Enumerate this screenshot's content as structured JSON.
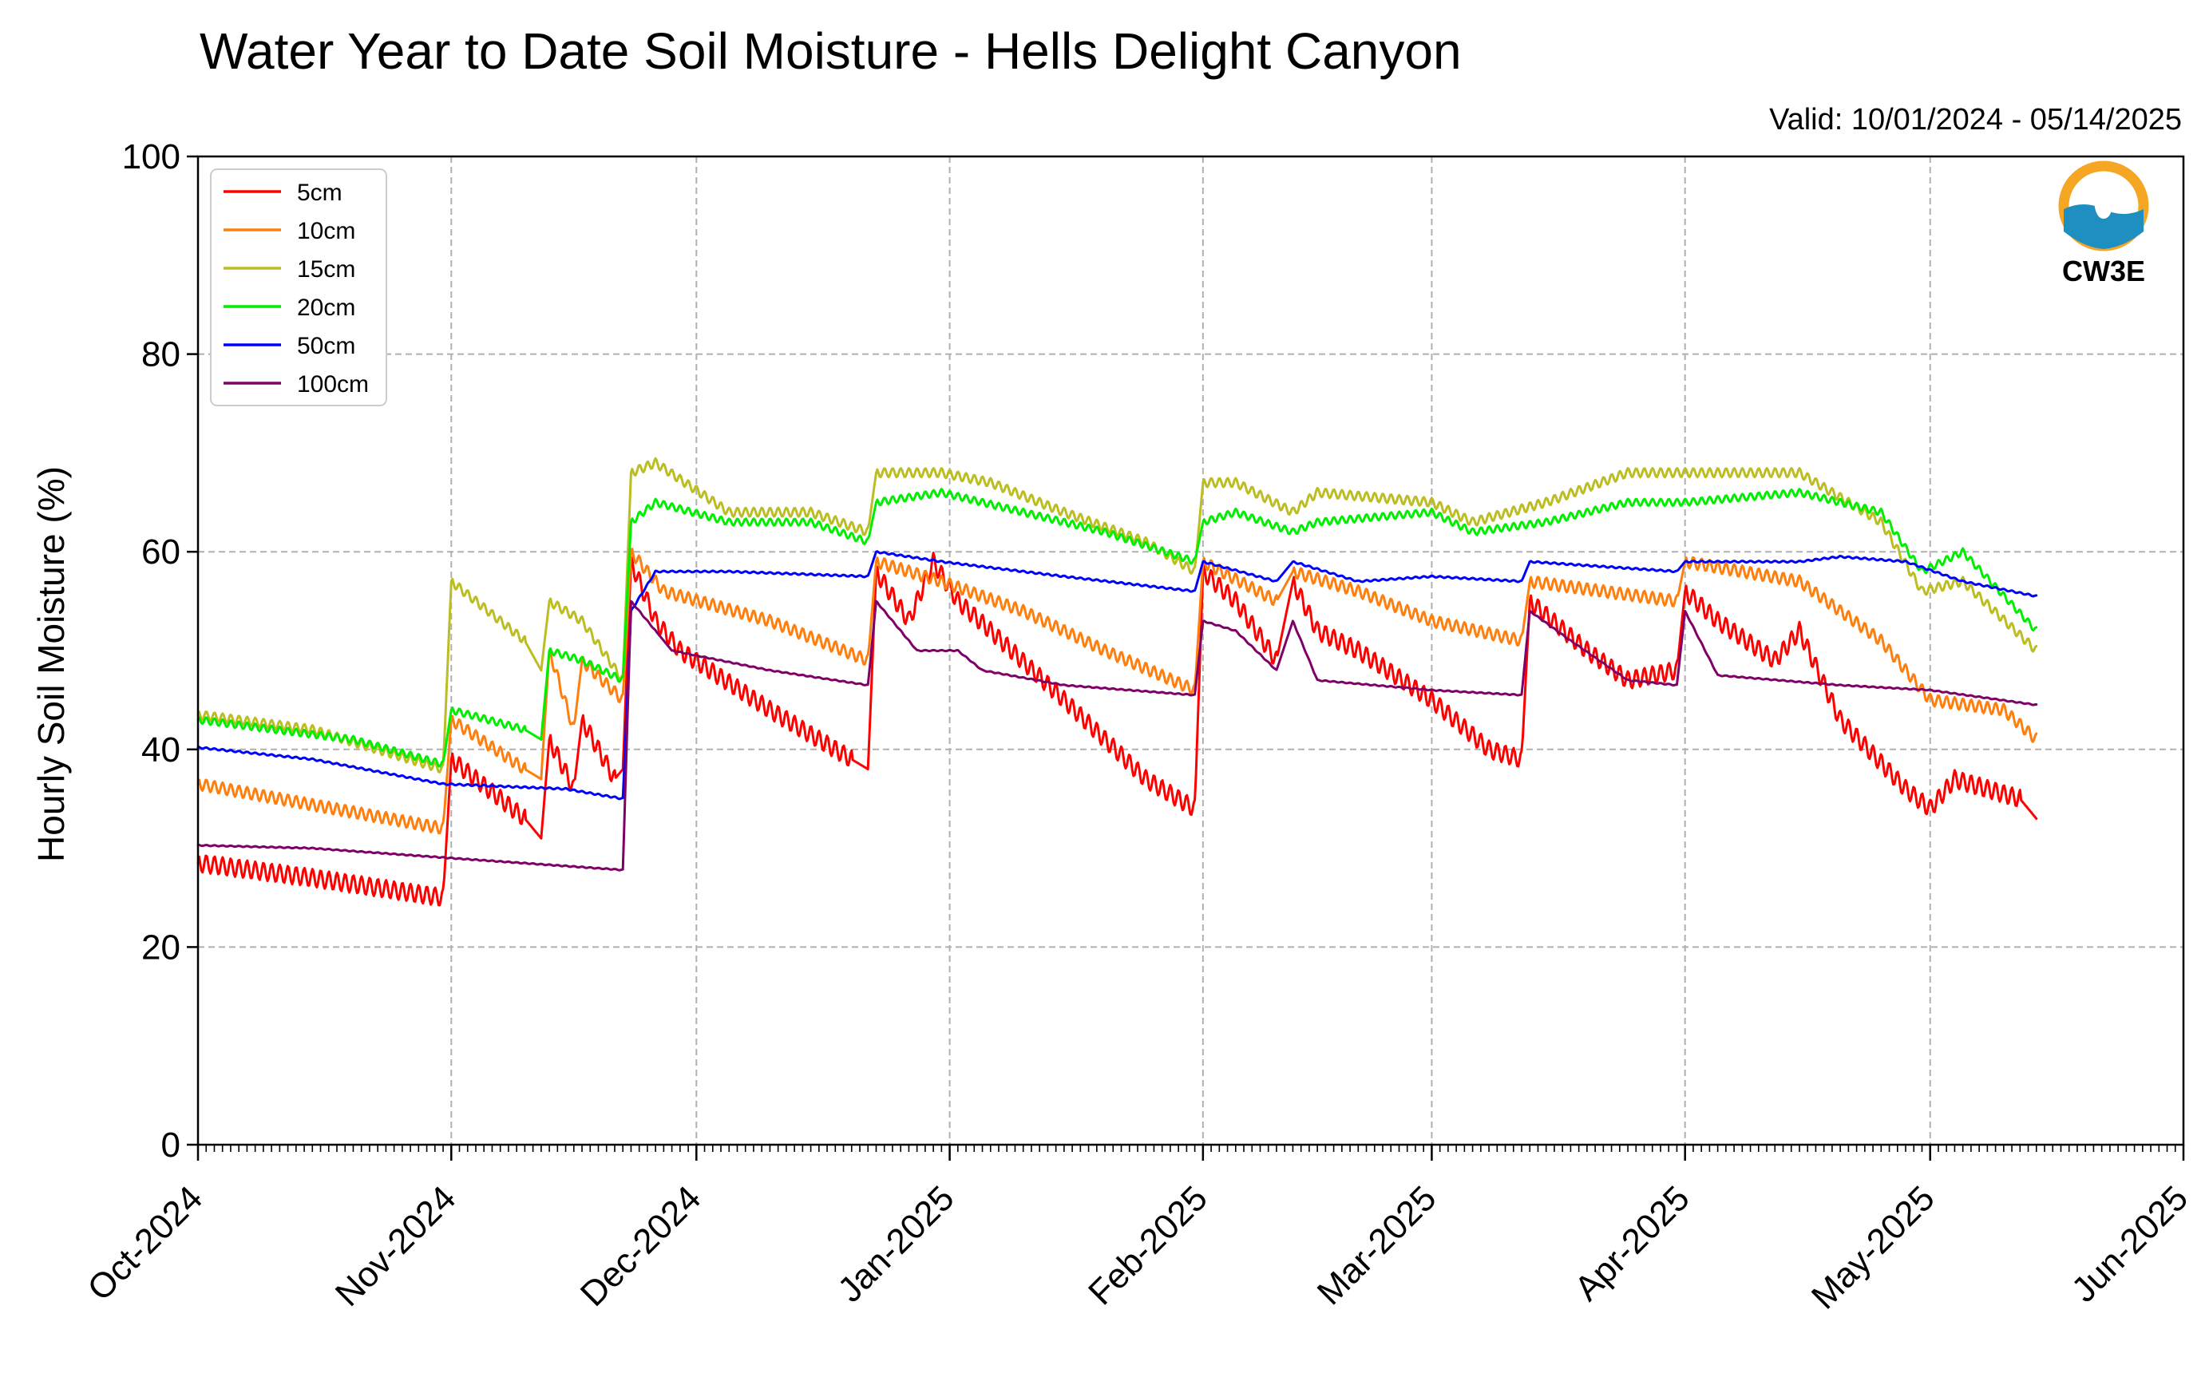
{
  "chart_data": {
    "type": "line",
    "title": "Water Year to Date Soil Moisture - Hells Delight Canyon",
    "subtitle": "Valid: 10/01/2024 - 05/14/2025",
    "xlabel": "",
    "ylabel": "Hourly Soil Moisture (%)",
    "ylim": [
      0,
      100
    ],
    "yticks": [
      "0",
      "20",
      "40",
      "60",
      "80",
      "100"
    ],
    "xlim": [
      "2024-10-01",
      "2025-06-01"
    ],
    "xticks": [
      {
        "date": "2024-10-01",
        "label": "Oct-2024"
      },
      {
        "date": "2024-11-01",
        "label": "Nov-2024"
      },
      {
        "date": "2024-12-01",
        "label": "Dec-2024"
      },
      {
        "date": "2025-01-01",
        "label": "Jan-2025"
      },
      {
        "date": "2025-02-01",
        "label": "Feb-2025"
      },
      {
        "date": "2025-03-01",
        "label": "Mar-2025"
      },
      {
        "date": "2025-04-01",
        "label": "Apr-2025"
      },
      {
        "date": "2025-05-01",
        "label": "May-2025"
      },
      {
        "date": "2025-06-01",
        "label": "Jun-2025"
      }
    ],
    "grid": true,
    "legend_position": "top-left",
    "series": [
      {
        "name": "5cm",
        "color": "#ff0000",
        "points": [
          [
            "2024-10-01",
            28.5
          ],
          [
            "2024-10-15",
            27.0
          ],
          [
            "2024-10-31",
            25.0
          ],
          [
            "2024-11-01",
            39.0
          ],
          [
            "2024-11-10",
            33.0
          ],
          [
            "2024-11-12",
            31.0
          ],
          [
            "2024-11-13",
            41.0
          ],
          [
            "2024-11-16",
            36.0
          ],
          [
            "2024-11-17",
            43.0
          ],
          [
            "2024-11-21",
            37.0
          ],
          [
            "2024-11-22",
            38.0
          ],
          [
            "2024-11-23",
            59.0
          ],
          [
            "2024-11-26",
            53.0
          ],
          [
            "2024-11-29",
            50.0
          ],
          [
            "2024-12-10",
            44.0
          ],
          [
            "2024-12-20",
            39.0
          ],
          [
            "2024-12-22",
            38.0
          ],
          [
            "2024-12-23",
            58.0
          ],
          [
            "2024-12-27",
            53.0
          ],
          [
            "2024-12-30",
            59.0
          ],
          [
            "2025-01-02",
            55.0
          ],
          [
            "2025-01-06",
            52.0
          ],
          [
            "2025-01-15",
            45.0
          ],
          [
            "2025-01-25",
            37.0
          ],
          [
            "2025-01-31",
            34.0
          ],
          [
            "2025-02-01",
            58.0
          ],
          [
            "2025-02-05",
            55.0
          ],
          [
            "2025-02-10",
            49.0
          ],
          [
            "2025-02-12",
            57.0
          ],
          [
            "2025-02-15",
            52.0
          ],
          [
            "2025-02-20",
            50.0
          ],
          [
            "2025-03-01",
            45.0
          ],
          [
            "2025-03-08",
            40.0
          ],
          [
            "2025-03-12",
            39.0
          ],
          [
            "2025-03-13",
            55.0
          ],
          [
            "2025-03-20",
            50.0
          ],
          [
            "2025-03-25",
            47.0
          ],
          [
            "2025-03-31",
            48.0
          ],
          [
            "2025-04-01",
            56.0
          ],
          [
            "2025-04-05",
            53.0
          ],
          [
            "2025-04-12",
            49.0
          ],
          [
            "2025-04-15",
            52.0
          ],
          [
            "2025-04-20",
            43.0
          ],
          [
            "2025-04-28",
            36.0
          ],
          [
            "2025-05-01",
            34.0
          ],
          [
            "2025-05-04",
            37.0
          ],
          [
            "2025-05-12",
            35.0
          ],
          [
            "2025-05-14",
            33.0
          ]
        ]
      },
      {
        "name": "10cm",
        "color": "#ff7f0e",
        "points": [
          [
            "2024-10-01",
            36.5
          ],
          [
            "2024-10-31",
            32.0
          ],
          [
            "2024-11-01",
            43.0
          ],
          [
            "2024-11-10",
            38.0
          ],
          [
            "2024-11-12",
            37.0
          ],
          [
            "2024-11-13",
            50.0
          ],
          [
            "2024-11-16",
            42.0
          ],
          [
            "2024-11-17",
            49.0
          ],
          [
            "2024-11-22",
            45.0
          ],
          [
            "2024-11-23",
            60.0
          ],
          [
            "2024-11-27",
            56.0
          ],
          [
            "2024-12-10",
            53.0
          ],
          [
            "2024-12-22",
            49.0
          ],
          [
            "2024-12-23",
            59.0
          ],
          [
            "2024-12-31",
            57.0
          ],
          [
            "2025-01-10",
            54.0
          ],
          [
            "2025-01-20",
            50.0
          ],
          [
            "2025-01-31",
            46.0
          ],
          [
            "2025-02-01",
            59.0
          ],
          [
            "2025-02-10",
            55.0
          ],
          [
            "2025-02-12",
            58.0
          ],
          [
            "2025-02-20",
            56.0
          ],
          [
            "2025-03-01",
            53.0
          ],
          [
            "2025-03-12",
            51.0
          ],
          [
            "2025-03-13",
            57.0
          ],
          [
            "2025-03-31",
            55.0
          ],
          [
            "2025-04-01",
            59.0
          ],
          [
            "2025-04-15",
            57.0
          ],
          [
            "2025-04-25",
            51.0
          ],
          [
            "2025-05-01",
            45.0
          ],
          [
            "2025-05-10",
            44.0
          ],
          [
            "2025-05-14",
            41.0
          ]
        ]
      },
      {
        "name": "15cm",
        "color": "#bcbd22",
        "points": [
          [
            "2024-10-01",
            43.5
          ],
          [
            "2024-10-15",
            42.0
          ],
          [
            "2024-10-31",
            38.0
          ],
          [
            "2024-11-01",
            57.0
          ],
          [
            "2024-11-10",
            51.0
          ],
          [
            "2024-11-12",
            48.0
          ],
          [
            "2024-11-13",
            55.0
          ],
          [
            "2024-11-17",
            53.0
          ],
          [
            "2024-11-22",
            47.0
          ],
          [
            "2024-11-23",
            68.0
          ],
          [
            "2024-11-26",
            69.0
          ],
          [
            "2024-12-05",
            64.0
          ],
          [
            "2024-12-15",
            64.0
          ],
          [
            "2024-12-22",
            62.0
          ],
          [
            "2024-12-23",
            68.0
          ],
          [
            "2024-12-31",
            68.0
          ],
          [
            "2025-01-06",
            67.0
          ],
          [
            "2025-01-15",
            64.0
          ],
          [
            "2025-01-25",
            61.0
          ],
          [
            "2025-01-31",
            58.0
          ],
          [
            "2025-02-01",
            67.0
          ],
          [
            "2025-02-05",
            67.0
          ],
          [
            "2025-02-12",
            64.0
          ],
          [
            "2025-02-15",
            66.0
          ],
          [
            "2025-03-01",
            65.0
          ],
          [
            "2025-03-06",
            63.0
          ],
          [
            "2025-03-15",
            65.0
          ],
          [
            "2025-03-25",
            68.0
          ],
          [
            "2025-04-01",
            68.0
          ],
          [
            "2025-04-15",
            68.0
          ],
          [
            "2025-04-25",
            63.0
          ],
          [
            "2025-04-30",
            56.0
          ],
          [
            "2025-05-05",
            57.0
          ],
          [
            "2025-05-14",
            50.0
          ]
        ]
      },
      {
        "name": "20cm",
        "color": "#00ee00",
        "points": [
          [
            "2024-10-01",
            43.0
          ],
          [
            "2024-10-20",
            41.0
          ],
          [
            "2024-10-31",
            38.5
          ],
          [
            "2024-11-01",
            44.0
          ],
          [
            "2024-11-10",
            42.0
          ],
          [
            "2024-11-12",
            41.0
          ],
          [
            "2024-11-13",
            50.0
          ],
          [
            "2024-11-17",
            49.0
          ],
          [
            "2024-11-22",
            47.0
          ],
          [
            "2024-11-23",
            63.0
          ],
          [
            "2024-11-26",
            65.0
          ],
          [
            "2024-12-05",
            63.0
          ],
          [
            "2024-12-15",
            63.0
          ],
          [
            "2024-12-22",
            61.0
          ],
          [
            "2024-12-23",
            65.0
          ],
          [
            "2024-12-31",
            66.0
          ],
          [
            "2025-01-10",
            64.0
          ],
          [
            "2025-01-20",
            62.0
          ],
          [
            "2025-01-31",
            59.0
          ],
          [
            "2025-02-01",
            63.0
          ],
          [
            "2025-02-05",
            64.0
          ],
          [
            "2025-02-12",
            62.0
          ],
          [
            "2025-02-15",
            63.0
          ],
          [
            "2025-03-01",
            64.0
          ],
          [
            "2025-03-06",
            62.0
          ],
          [
            "2025-03-15",
            63.0
          ],
          [
            "2025-03-25",
            65.0
          ],
          [
            "2025-04-01",
            65.0
          ],
          [
            "2025-04-15",
            66.0
          ],
          [
            "2025-04-25",
            64.0
          ],
          [
            "2025-04-30",
            58.0
          ],
          [
            "2025-05-05",
            60.0
          ],
          [
            "2025-05-14",
            52.0
          ]
        ]
      },
      {
        "name": "50cm",
        "color": "#0000ff",
        "points": [
          [
            "2024-10-01",
            40.2
          ],
          [
            "2024-10-15",
            39.0
          ],
          [
            "2024-10-31",
            36.5
          ],
          [
            "2024-11-15",
            36.0
          ],
          [
            "2024-11-22",
            35.0
          ],
          [
            "2024-11-23",
            54.0
          ],
          [
            "2024-11-26",
            58.0
          ],
          [
            "2024-12-05",
            58.0
          ],
          [
            "2024-12-22",
            57.5
          ],
          [
            "2024-12-23",
            60.0
          ],
          [
            "2024-12-31",
            59.0
          ],
          [
            "2025-01-15",
            57.5
          ],
          [
            "2025-01-31",
            56.0
          ],
          [
            "2025-02-01",
            59.0
          ],
          [
            "2025-02-10",
            57.0
          ],
          [
            "2025-02-12",
            59.0
          ],
          [
            "2025-02-20",
            57.0
          ],
          [
            "2025-03-01",
            57.5
          ],
          [
            "2025-03-12",
            57.0
          ],
          [
            "2025-03-13",
            59.0
          ],
          [
            "2025-03-31",
            58.0
          ],
          [
            "2025-04-01",
            59.0
          ],
          [
            "2025-04-15",
            59.0
          ],
          [
            "2025-04-20",
            59.5
          ],
          [
            "2025-04-28",
            59.0
          ],
          [
            "2025-05-05",
            57.0
          ],
          [
            "2025-05-14",
            55.5
          ]
        ]
      },
      {
        "name": "100cm",
        "color": "#7f0066",
        "points": [
          [
            "2024-10-01",
            30.3
          ],
          [
            "2024-10-15",
            30.0
          ],
          [
            "2024-11-01",
            29.0
          ],
          [
            "2024-11-22",
            27.8
          ],
          [
            "2024-11-23",
            55.0
          ],
          [
            "2024-11-26",
            52.0
          ],
          [
            "2024-11-28",
            50.0
          ],
          [
            "2024-12-10",
            48.0
          ],
          [
            "2024-12-22",
            46.5
          ],
          [
            "2024-12-23",
            55.0
          ],
          [
            "2024-12-28",
            50.0
          ],
          [
            "2025-01-02",
            50.0
          ],
          [
            "2025-01-05",
            48.0
          ],
          [
            "2025-01-15",
            46.5
          ],
          [
            "2025-01-31",
            45.5
          ],
          [
            "2025-02-01",
            53.0
          ],
          [
            "2025-02-05",
            52.0
          ],
          [
            "2025-02-10",
            48.0
          ],
          [
            "2025-02-12",
            53.0
          ],
          [
            "2025-02-15",
            47.0
          ],
          [
            "2025-03-01",
            46.0
          ],
          [
            "2025-03-12",
            45.5
          ],
          [
            "2025-03-13",
            54.0
          ],
          [
            "2025-03-18",
            51.0
          ],
          [
            "2025-03-25",
            47.0
          ],
          [
            "2025-03-31",
            46.5
          ],
          [
            "2025-04-01",
            54.0
          ],
          [
            "2025-04-05",
            47.5
          ],
          [
            "2025-04-20",
            46.5
          ],
          [
            "2025-05-01",
            46.0
          ],
          [
            "2025-05-14",
            44.5
          ]
        ]
      }
    ]
  },
  "logo": {
    "text": "CW3E",
    "color": "#1f8fc2",
    "accent": "#f5a623"
  }
}
